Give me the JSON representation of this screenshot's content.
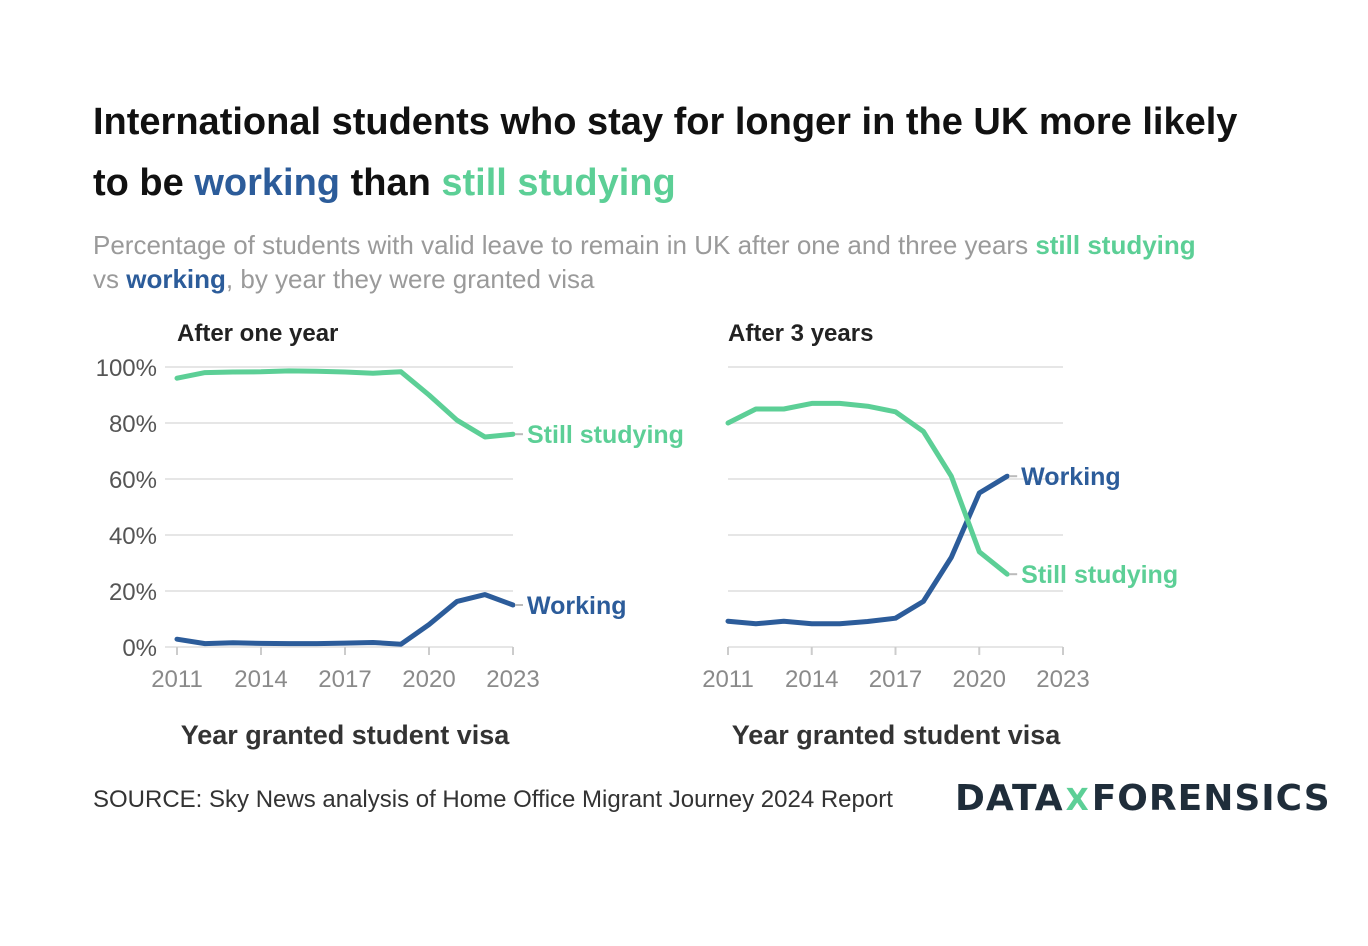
{
  "title": {
    "line1": "International students who stay for longer in the UK more likely",
    "prefix": "to be ",
    "working": "working",
    "middle": " than ",
    "still_studying": "still studying"
  },
  "subtitle": {
    "part1": "Percentage of students with valid leave to remain in UK after one and three years ",
    "still_studying": "still studying",
    "vs": " vs ",
    "working": "working",
    "part2": ", by year they were granted visa"
  },
  "colors": {
    "working": "#2c5c9a",
    "still_studying": "#5ccf96",
    "grid": "#e6e6e6",
    "tick_text": "#8a8a8a"
  },
  "chart_data": [
    {
      "type": "line",
      "title": "After one year",
      "xlabel": "Year granted student visa",
      "ylabel": "",
      "xlim": [
        2011,
        2023
      ],
      "ylim": [
        0,
        100
      ],
      "xticks": [
        2011,
        2014,
        2017,
        2020,
        2023
      ],
      "yticks": [
        0,
        20,
        40,
        60,
        80,
        100
      ],
      "ytick_labels": [
        "0%",
        "20%",
        "40%",
        "60%",
        "80%",
        "100%"
      ],
      "grid": true,
      "series": [
        {
          "name": "Still studying",
          "color": "#5ccf96",
          "x": [
            2011,
            2012,
            2013,
            2014,
            2015,
            2016,
            2017,
            2018,
            2019,
            2020,
            2021,
            2022,
            2023
          ],
          "y": [
            96,
            98,
            98.2,
            98.3,
            98.6,
            98.5,
            98.2,
            97.8,
            98.3,
            90,
            81,
            75,
            76
          ]
        },
        {
          "name": "Working",
          "color": "#2c5c9a",
          "x": [
            2011,
            2012,
            2013,
            2014,
            2015,
            2016,
            2017,
            2018,
            2019,
            2020,
            2021,
            2022,
            2023
          ],
          "y": [
            2.8,
            1.2,
            1.5,
            1.3,
            1.2,
            1.2,
            1.4,
            1.6,
            1.0,
            8,
            16.3,
            18.7,
            15
          ]
        }
      ]
    },
    {
      "type": "line",
      "title": "After 3 years",
      "xlabel": "Year granted student visa",
      "ylabel": "",
      "xlim": [
        2011,
        2023
      ],
      "ylim": [
        0,
        100
      ],
      "xticks": [
        2011,
        2014,
        2017,
        2020,
        2023
      ],
      "yticks": [
        0,
        20,
        40,
        60,
        80,
        100
      ],
      "grid": true,
      "series": [
        {
          "name": "Working",
          "color": "#2c5c9a",
          "x": [
            2011,
            2012,
            2013,
            2014,
            2015,
            2016,
            2017,
            2018,
            2019,
            2020,
            2021
          ],
          "y": [
            9.2,
            8.3,
            9.2,
            8.3,
            8.3,
            9.1,
            10.3,
            16.3,
            32,
            55,
            61
          ]
        },
        {
          "name": "Still studying",
          "color": "#5ccf96",
          "x": [
            2011,
            2012,
            2013,
            2014,
            2015,
            2016,
            2017,
            2018,
            2019,
            2020,
            2021
          ],
          "y": [
            80,
            85,
            85,
            87,
            87,
            86,
            84,
            77,
            61,
            34,
            26
          ]
        }
      ]
    }
  ],
  "source": "SOURCE: Sky News analysis of Home Office Migrant Journey 2024 Report",
  "logo": {
    "left": "DATA",
    "mark": "X",
    "right": "FORENSICS"
  }
}
